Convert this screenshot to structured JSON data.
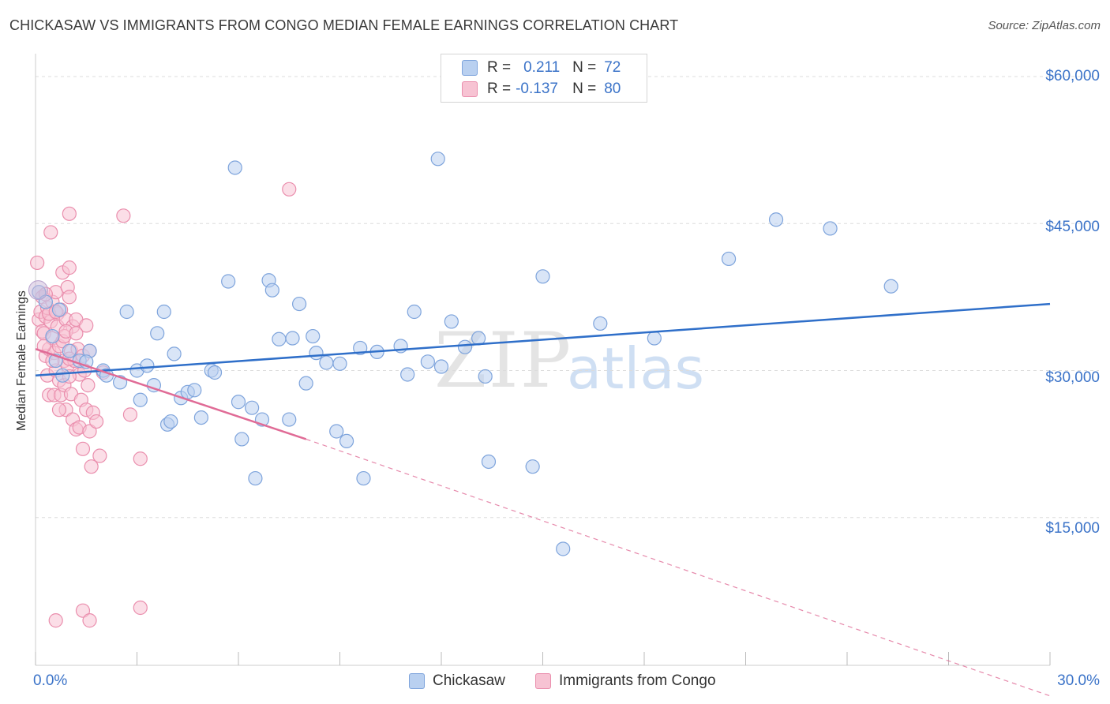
{
  "title": "CHICKASAW VS IMMIGRANTS FROM CONGO MEDIAN FEMALE EARNINGS CORRELATION CHART",
  "source": "Source: ZipAtlas.com",
  "watermark": {
    "zip": "ZIP",
    "atlas": "atlas"
  },
  "legend_top": {
    "rows": [
      {
        "r_label": "R =",
        "r_value": "0.211",
        "n_label": "N =",
        "n_value": "72"
      },
      {
        "r_label": "R =",
        "r_value": "-0.137",
        "n_label": "N =",
        "n_value": "80"
      }
    ]
  },
  "legend_bottom": [
    "Chickasaw",
    "Immigrants from Congo"
  ],
  "colors": {
    "blue_fill": "#b9d0f0",
    "blue_stroke": "#7ea4dc",
    "blue_line": "#2f6fc9",
    "pink_fill": "#f7c3d3",
    "pink_stroke": "#ea8ead",
    "pink_line": "#e06b96",
    "axis_text": "#3b73c8",
    "grid": "#dcdcdc"
  },
  "chart_data": {
    "type": "scatter",
    "title": "CHICKASAW VS IMMIGRANTS FROM CONGO MEDIAN FEMALE EARNINGS CORRELATION CHART",
    "xlabel": "",
    "ylabel": "Median Female Earnings",
    "xlim": [
      0,
      30
    ],
    "ylim": [
      0,
      60000
    ],
    "y_ticks": [
      15000,
      30000,
      45000,
      60000
    ],
    "y_tick_labels": [
      "$15,000",
      "$30,000",
      "$45,000",
      "$60,000"
    ],
    "x_tick_labels": [
      "0.0%",
      "30.0%"
    ],
    "grid": true,
    "series": [
      {
        "name": "Chickasaw",
        "R": 0.211,
        "N": 72,
        "trend": {
          "x": [
            0,
            30
          ],
          "y": [
            29500,
            36800
          ]
        },
        "points": [
          [
            0.1,
            38000
          ],
          [
            0.5,
            33500
          ],
          [
            0.6,
            31000
          ],
          [
            0.8,
            29500
          ],
          [
            1.0,
            32000
          ],
          [
            1.3,
            31000
          ],
          [
            1.6,
            32000
          ],
          [
            2.0,
            30000
          ],
          [
            2.1,
            29500
          ],
          [
            2.5,
            28800
          ],
          [
            2.7,
            36000
          ],
          [
            3.0,
            30000
          ],
          [
            3.1,
            27000
          ],
          [
            3.3,
            30500
          ],
          [
            3.5,
            28500
          ],
          [
            3.6,
            33800
          ],
          [
            3.9,
            24500
          ],
          [
            4.0,
            24800
          ],
          [
            4.1,
            31700
          ],
          [
            4.3,
            27200
          ],
          [
            4.5,
            27800
          ],
          [
            4.7,
            28000
          ],
          [
            4.9,
            25200
          ],
          [
            5.2,
            30000
          ],
          [
            5.3,
            29800
          ],
          [
            5.7,
            39100
          ],
          [
            5.9,
            50700
          ],
          [
            6.0,
            26800
          ],
          [
            6.1,
            23000
          ],
          [
            6.4,
            26200
          ],
          [
            6.5,
            19000
          ],
          [
            6.7,
            25000
          ],
          [
            6.9,
            39200
          ],
          [
            7.0,
            38200
          ],
          [
            7.2,
            33200
          ],
          [
            7.5,
            25000
          ],
          [
            7.6,
            33300
          ],
          [
            7.8,
            36800
          ],
          [
            8.0,
            28700
          ],
          [
            8.2,
            33500
          ],
          [
            8.3,
            31800
          ],
          [
            8.6,
            30800
          ],
          [
            8.9,
            23800
          ],
          [
            9.0,
            30700
          ],
          [
            9.2,
            22800
          ],
          [
            9.6,
            32300
          ],
          [
            9.7,
            19000
          ],
          [
            10.1,
            31900
          ],
          [
            10.8,
            32500
          ],
          [
            11.0,
            29600
          ],
          [
            11.2,
            36000
          ],
          [
            11.6,
            30900
          ],
          [
            11.9,
            51600
          ],
          [
            12.0,
            30400
          ],
          [
            12.3,
            35000
          ],
          [
            12.7,
            32400
          ],
          [
            13.1,
            33300
          ],
          [
            13.3,
            29400
          ],
          [
            13.4,
            20700
          ],
          [
            14.7,
            20200
          ],
          [
            15.0,
            39600
          ],
          [
            15.6,
            11800
          ],
          [
            16.7,
            34800
          ],
          [
            18.3,
            33300
          ],
          [
            20.5,
            41400
          ],
          [
            21.9,
            45400
          ],
          [
            23.5,
            44500
          ],
          [
            25.3,
            38600
          ],
          [
            1.5,
            30900
          ],
          [
            0.3,
            37000
          ],
          [
            0.7,
            36200
          ],
          [
            3.8,
            36000
          ]
        ]
      },
      {
        "name": "Immigrants from Congo",
        "R": -0.137,
        "N": 80,
        "trend_solid": {
          "x": [
            0,
            8
          ],
          "y": [
            32200,
            23000
          ]
        },
        "trend_dashed": {
          "x": [
            8,
            30
          ],
          "y": [
            23000,
            -3200
          ]
        },
        "points": [
          [
            0.05,
            41000
          ],
          [
            0.1,
            35200
          ],
          [
            0.15,
            36000
          ],
          [
            0.2,
            34000
          ],
          [
            0.2,
            37500
          ],
          [
            0.25,
            33800
          ],
          [
            0.3,
            35500
          ],
          [
            0.3,
            31500
          ],
          [
            0.35,
            29500
          ],
          [
            0.35,
            36400
          ],
          [
            0.4,
            32200
          ],
          [
            0.4,
            27500
          ],
          [
            0.45,
            35000
          ],
          [
            0.5,
            37000
          ],
          [
            0.5,
            33300
          ],
          [
            0.55,
            31800
          ],
          [
            0.55,
            27500
          ],
          [
            0.6,
            30000
          ],
          [
            0.6,
            38000
          ],
          [
            0.65,
            35800
          ],
          [
            0.65,
            34500
          ],
          [
            0.7,
            32500
          ],
          [
            0.7,
            29000
          ],
          [
            0.75,
            27500
          ],
          [
            0.75,
            36200
          ],
          [
            0.8,
            40000
          ],
          [
            0.8,
            33000
          ],
          [
            0.85,
            31000
          ],
          [
            0.85,
            28500
          ],
          [
            0.9,
            26000
          ],
          [
            0.9,
            35200
          ],
          [
            0.95,
            30500
          ],
          [
            0.95,
            38500
          ],
          [
            1.0,
            37500
          ],
          [
            1.0,
            40500
          ],
          [
            1.05,
            32000
          ],
          [
            1.05,
            27600
          ],
          [
            1.1,
            25000
          ],
          [
            1.1,
            34500
          ],
          [
            1.15,
            31000
          ],
          [
            1.2,
            24000
          ],
          [
            1.2,
            35200
          ],
          [
            1.25,
            32200
          ],
          [
            1.3,
            29600
          ],
          [
            1.3,
            24200
          ],
          [
            1.35,
            27000
          ],
          [
            1.4,
            31500
          ],
          [
            1.4,
            22000
          ],
          [
            1.45,
            30000
          ],
          [
            1.5,
            26000
          ],
          [
            1.5,
            34600
          ],
          [
            1.55,
            28500
          ],
          [
            1.6,
            23800
          ],
          [
            1.6,
            32000
          ],
          [
            1.65,
            20200
          ],
          [
            1.7,
            25700
          ],
          [
            1.8,
            24800
          ],
          [
            1.9,
            21300
          ],
          [
            2.0,
            29800
          ],
          [
            0.45,
            44100
          ],
          [
            1.0,
            46000
          ],
          [
            2.6,
            45800
          ],
          [
            7.5,
            48500
          ],
          [
            2.8,
            25500
          ],
          [
            3.1,
            21000
          ],
          [
            0.6,
            4500
          ],
          [
            1.4,
            5500
          ],
          [
            1.6,
            4500
          ],
          [
            3.1,
            5800
          ],
          [
            0.85,
            33500
          ],
          [
            0.4,
            35800
          ],
          [
            0.5,
            31000
          ],
          [
            0.6,
            36000
          ],
          [
            0.7,
            26000
          ],
          [
            0.9,
            34000
          ],
          [
            1.0,
            29400
          ],
          [
            1.2,
            33800
          ],
          [
            0.3,
            37800
          ],
          [
            0.25,
            32500
          ],
          [
            1.0,
            31200
          ]
        ]
      }
    ]
  }
}
